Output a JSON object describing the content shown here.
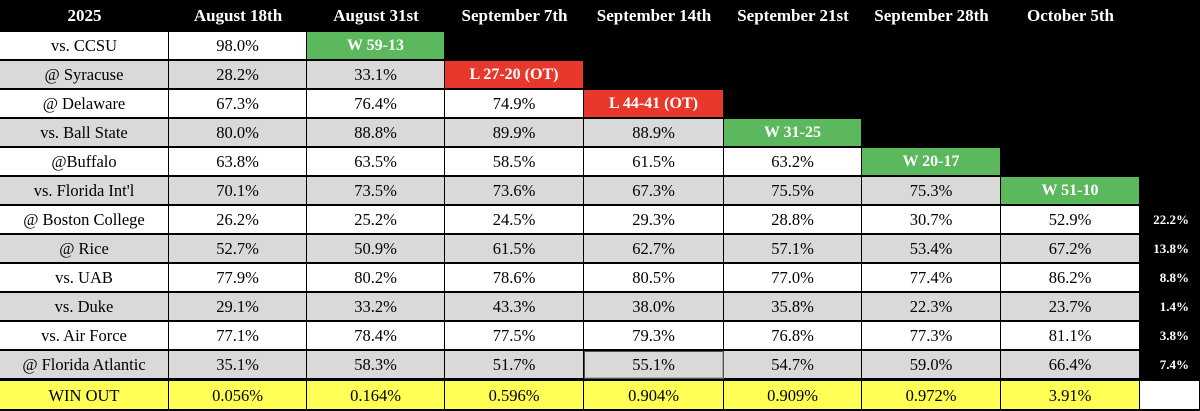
{
  "header": {
    "year": "2025",
    "dates": [
      "August 18th",
      "August 31st",
      "September 7th",
      "September 14th",
      "September 21st",
      "September 28th",
      "October 5th"
    ]
  },
  "colors": {
    "gray": "#d9d9d9",
    "white": "#ffffff",
    "win": "#5cb85c",
    "loss": "#e8382c",
    "winout": "#ffff55",
    "background": "#000000"
  },
  "rows": [
    {
      "opponent": "vs. CCSU",
      "values": [
        "98.0%"
      ],
      "result": {
        "text": "W 59-13",
        "type": "win"
      },
      "side": ""
    },
    {
      "opponent": "@ Syracuse",
      "values": [
        "28.2%",
        "33.1%"
      ],
      "result": {
        "text": "L 27-20 (OT)",
        "type": "loss"
      },
      "side": ""
    },
    {
      "opponent": "@ Delaware",
      "values": [
        "67.3%",
        "76.4%",
        "74.9%"
      ],
      "result": {
        "text": "L 44-41 (OT)",
        "type": "loss"
      },
      "side": ""
    },
    {
      "opponent": "vs. Ball State",
      "values": [
        "80.0%",
        "88.8%",
        "89.9%",
        "88.9%"
      ],
      "result": {
        "text": "W 31-25",
        "type": "win"
      },
      "side": ""
    },
    {
      "opponent": "@Buffalo",
      "values": [
        "63.8%",
        "63.5%",
        "58.5%",
        "61.5%",
        "63.2%"
      ],
      "result": {
        "text": "W 20-17",
        "type": "win"
      },
      "side": ""
    },
    {
      "opponent": "vs. Florida Int'l",
      "values": [
        "70.1%",
        "73.5%",
        "73.6%",
        "67.3%",
        "75.5%",
        "75.3%"
      ],
      "result": {
        "text": "W 51-10",
        "type": "win"
      },
      "side": ""
    },
    {
      "opponent": "@ Boston College",
      "values": [
        "26.2%",
        "25.2%",
        "24.5%",
        "29.3%",
        "28.8%",
        "30.7%",
        "52.9%"
      ],
      "result": null,
      "side": "22.2%"
    },
    {
      "opponent": "@ Rice",
      "values": [
        "52.7%",
        "50.9%",
        "61.5%",
        "62.7%",
        "57.1%",
        "53.4%",
        "67.2%"
      ],
      "result": null,
      "side": "13.8%"
    },
    {
      "opponent": "vs. UAB",
      "values": [
        "77.9%",
        "80.2%",
        "78.6%",
        "80.5%",
        "77.0%",
        "77.4%",
        "86.2%"
      ],
      "result": null,
      "side": "8.8%"
    },
    {
      "opponent": "vs. Duke",
      "values": [
        "29.1%",
        "33.2%",
        "43.3%",
        "38.0%",
        "35.8%",
        "22.3%",
        "23.7%"
      ],
      "result": null,
      "side": "1.4%"
    },
    {
      "opponent": "vs. Air Force",
      "values": [
        "77.1%",
        "78.4%",
        "77.5%",
        "79.3%",
        "76.8%",
        "77.3%",
        "81.1%"
      ],
      "result": null,
      "side": "3.8%"
    },
    {
      "opponent": "@ Florida Atlantic",
      "values": [
        "35.1%",
        "58.3%",
        "51.7%",
        "55.1%",
        "54.7%",
        "59.0%",
        "66.4%"
      ],
      "result": null,
      "side": "7.4%"
    }
  ],
  "win_out": {
    "label": "WIN OUT",
    "values": [
      "0.056%",
      "0.164%",
      "0.596%",
      "0.904%",
      "0.909%",
      "0.972%",
      "3.91%"
    ]
  }
}
